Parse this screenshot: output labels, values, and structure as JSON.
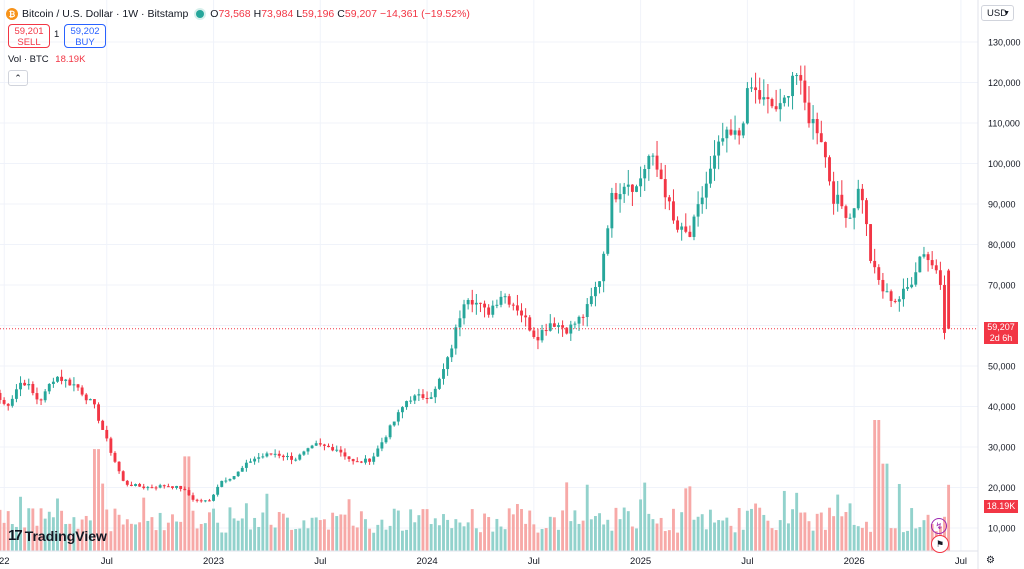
{
  "header": {
    "symbol": "Bitcoin / U.S. Dollar · 1W · Bitstamp",
    "logo_letter": "₿",
    "open_label": "O",
    "open": "73,568",
    "high_label": "H",
    "high": "73,984",
    "low_label": "L",
    "low": "59,196",
    "close_label": "C",
    "close": "59,207",
    "change": "−14,361 (−19.52%)"
  },
  "trade": {
    "sell_price": "59,201",
    "sell_label": "SELL",
    "spread": "1",
    "buy_price": "59,202",
    "buy_label": "BUY"
  },
  "volume_legend": {
    "label": "Vol · BTC",
    "value": "18.19K"
  },
  "currency": "USD",
  "price_axis": {
    "ticks": [
      "130,000",
      "120,000",
      "110,000",
      "100,000",
      "90,000",
      "80,000",
      "70,000",
      "60,000",
      "50,000",
      "40,000",
      "30,000",
      "20,000",
      "10,000"
    ],
    "current_price_label": "59,207",
    "countdown": "2d 6h",
    "volume_label": "18.19K"
  },
  "time_axis": {
    "ticks": [
      "22",
      "Jul",
      "2023",
      "Jul",
      "2024",
      "Jul",
      "2025",
      "Jul",
      "2026",
      "Jul"
    ]
  },
  "brand": "TradingView",
  "colors": {
    "up": "#26a69a",
    "down": "#f23645",
    "vol_up": "#92d2cc",
    "vol_down": "#f7a9a7"
  },
  "icons": {
    "collapse": "chevron-up-icon",
    "settings": "gear-icon",
    "flag": "us-flag-icon",
    "events": "lightning-icon"
  },
  "chart_data": {
    "type": "candlestick",
    "interval": "1W",
    "ylim": [
      0,
      135000
    ],
    "price_ladder_anchor": [
      [
        2022.3,
        47000
      ],
      [
        2022.38,
        45000
      ],
      [
        2022.46,
        40000
      ],
      [
        2022.53,
        30000
      ],
      [
        2022.6,
        21000
      ],
      [
        2022.7,
        20000
      ],
      [
        2022.8,
        20500
      ],
      [
        2022.87,
        19800
      ],
      [
        2022.93,
        16800
      ],
      [
        2023.0,
        16600
      ],
      [
        2023.05,
        21500
      ],
      [
        2023.12,
        23000
      ],
      [
        2023.2,
        27000
      ],
      [
        2023.3,
        28500
      ],
      [
        2023.4,
        27000
      ],
      [
        2023.5,
        30500
      ],
      [
        2023.6,
        29500
      ],
      [
        2023.68,
        26000
      ],
      [
        2023.76,
        27000
      ],
      [
        2023.85,
        35000
      ],
      [
        2023.93,
        42000
      ],
      [
        2024.0,
        42500
      ],
      [
        2024.05,
        43000
      ],
      [
        2024.12,
        52000
      ],
      [
        2024.2,
        68000
      ],
      [
        2024.3,
        63000
      ],
      [
        2024.37,
        68000
      ],
      [
        2024.45,
        64000
      ],
      [
        2024.53,
        57000
      ],
      [
        2024.6,
        61000
      ],
      [
        2024.68,
        59000
      ],
      [
        2024.76,
        63000
      ],
      [
        2024.83,
        72000
      ],
      [
        2024.88,
        91000
      ],
      [
        2024.95,
        96000
      ],
      [
        2025.0,
        94000
      ],
      [
        2025.06,
        102000
      ],
      [
        2025.12,
        96000
      ],
      [
        2025.18,
        84000
      ],
      [
        2025.25,
        82000
      ],
      [
        2025.32,
        94000
      ],
      [
        2025.4,
        106000
      ],
      [
        2025.48,
        107000
      ],
      [
        2025.53,
        119000
      ],
      [
        2025.6,
        115000
      ],
      [
        2025.68,
        113000
      ],
      [
        2025.74,
        124000
      ],
      [
        2025.8,
        112000
      ],
      [
        2025.86,
        108000
      ],
      [
        2025.92,
        92000
      ],
      [
        2026.0,
        87000
      ],
      [
        2026.05,
        95000
      ],
      [
        2026.1,
        75000
      ],
      [
        2026.16,
        68000
      ],
      [
        2026.22,
        66000
      ],
      [
        2026.28,
        70000
      ],
      [
        2026.34,
        79000
      ],
      [
        2026.38,
        75000
      ],
      [
        2026.42,
        73568
      ],
      [
        2026.44,
        59207
      ]
    ],
    "volume_max": 36000
  }
}
